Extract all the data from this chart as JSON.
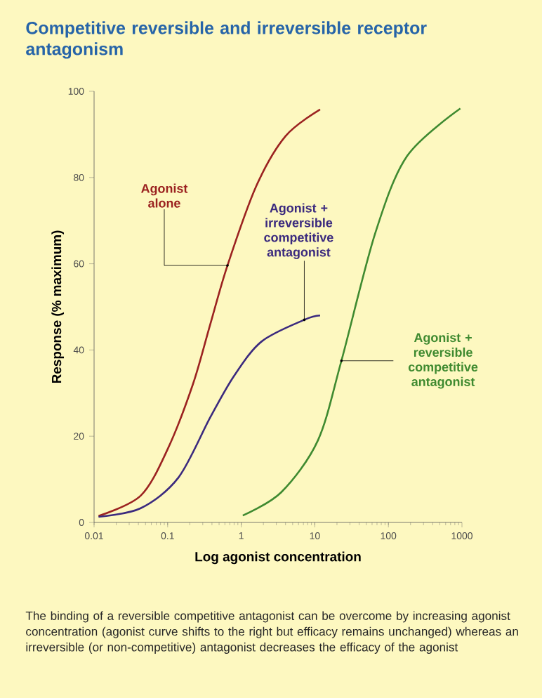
{
  "chart_data": {
    "type": "line",
    "title": "Competitive reversible and irreversible receptor antagonism",
    "xlabel": "Log agonist concentration",
    "ylabel": "Response (% maximum)",
    "log": "x",
    "xlim": [
      0.01,
      1000
    ],
    "ylim": [
      0,
      100
    ],
    "xticks": [
      0.01,
      0.1,
      1,
      10,
      100,
      1000
    ],
    "yticks": [
      0,
      20,
      40,
      60,
      80,
      100
    ],
    "grid": false,
    "marker": "none",
    "line_style": "solid",
    "series": [
      {
        "color": "#9b2220",
        "x": [
          0.0115,
          0.043,
          0.1,
          0.22,
          0.38,
          0.65,
          1.6,
          4,
          11.8
        ],
        "values": [
          1.5,
          6.2,
          17,
          32,
          46,
          59.6,
          78,
          89.6,
          95.8
        ]
      },
      {
        "color": "#3b2a7e",
        "x": [
          0.0115,
          0.043,
          0.14,
          0.38,
          0.8,
          1.9,
          7.2,
          11.8
        ],
        "values": [
          1.3,
          3.3,
          10.4,
          24.4,
          34,
          42,
          47,
          48
        ]
      },
      {
        "color": "#3f8a30",
        "x": [
          1.05,
          3.5,
          11,
          23,
          66,
          180,
          950
        ],
        "values": [
          1.6,
          7,
          19,
          37.5,
          67,
          85,
          96
        ]
      }
    ],
    "annotations": [
      {
        "text": "Agonist alone",
        "x": 0.65,
        "y": 59.6
      },
      {
        "text": "Agonist + irreversible competitive antagonist",
        "x": 7.2,
        "y": 47
      },
      {
        "text": "Agonist + reversible competitive antagonist",
        "x": 23,
        "y": 37.5
      },
      "The binding of a reversible competitive antagonist can be overcome by increasing agonist concentration (agonist curve shifts to the right but efficacy remains unchanged) whereas an irreversible (or non-competitive) antagonist decreases the efficacy of the agonist"
    ]
  }
}
